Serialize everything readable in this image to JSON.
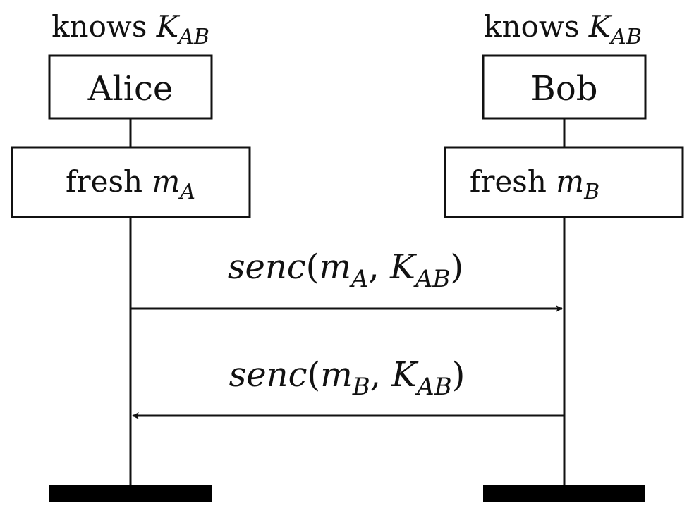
{
  "participants": [
    {
      "name": "Alice",
      "knows_prefix": "knows",
      "knows_var": "K",
      "knows_sub": "AB",
      "fresh_prefix": "fresh",
      "fresh_var": "m",
      "fresh_sub": "A"
    },
    {
      "name": "Bob",
      "knows_prefix": "knows",
      "knows_var": "K",
      "knows_sub": "AB",
      "fresh_prefix": "fresh",
      "fresh_var": "m",
      "fresh_sub": "B"
    }
  ],
  "messages": [
    {
      "func": "senc",
      "open": "(",
      "arg1_var": "m",
      "arg1_sub": "A",
      "comma": ",",
      "arg2_var": "K",
      "arg2_sub": "AB",
      "close": ")",
      "from": "Alice",
      "to": "Bob"
    },
    {
      "func": "senc",
      "open": "(",
      "arg1_var": "m",
      "arg1_sub": "B",
      "comma": ",",
      "arg2_var": "K",
      "arg2_sub": "AB",
      "close": ")",
      "from": "Bob",
      "to": "Alice"
    }
  ],
  "colors": {
    "ink": "#111111",
    "bar": "#000000",
    "background": "#ffffff"
  }
}
